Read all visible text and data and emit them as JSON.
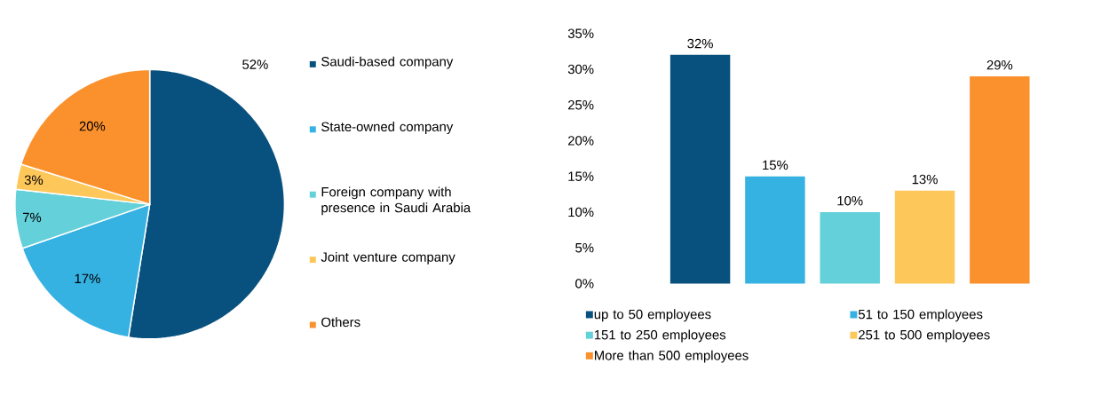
{
  "chart_data": [
    {
      "type": "pie",
      "categories": [
        "Saudi-based company",
        "State-owned company",
        "Foreign company with presence in Saudi Arabia",
        "Joint venture company",
        "Others"
      ],
      "values": [
        52,
        17,
        7,
        3,
        20
      ],
      "colors": [
        "#08517e",
        "#35b1e2",
        "#64d0da",
        "#fec75a",
        "#fa912d"
      ],
      "value_labels": [
        "52%",
        "17%",
        "7%",
        "3%",
        "20%"
      ],
      "legend": "right"
    },
    {
      "type": "bar",
      "categories": [
        null
      ],
      "series": [
        {
          "name": "up to 50 employees",
          "color": "#08517e",
          "values": [
            32
          ],
          "value_labels": [
            "32%"
          ]
        },
        {
          "name": "51 to 150 employees",
          "color": "#35b1e2",
          "values": [
            15
          ],
          "value_labels": [
            "15%"
          ]
        },
        {
          "name": "151 to 250 employees",
          "color": "#64d0da",
          "values": [
            10
          ],
          "value_labels": [
            "10%"
          ]
        },
        {
          "name": "251 to 500 employees",
          "color": "#fec75a",
          "values": [
            13
          ],
          "value_labels": [
            "13%"
          ]
        },
        {
          "name": "More than 500 employees",
          "color": "#fa912d",
          "values": [
            29
          ],
          "value_labels": [
            "29%"
          ]
        }
      ],
      "ylim": [
        0,
        35
      ],
      "yticks": [
        {
          "value": 0,
          "label": "0%"
        },
        {
          "value": 5,
          "label": "5%"
        },
        {
          "value": 10,
          "label": "10%"
        },
        {
          "value": 15,
          "label": "15%"
        },
        {
          "value": 20,
          "label": "20%"
        },
        {
          "value": 25,
          "label": "25%"
        },
        {
          "value": 30,
          "label": "30%"
        },
        {
          "value": 35,
          "label": "35%"
        }
      ],
      "legend": "bottom",
      "tick_labels": "y"
    }
  ]
}
